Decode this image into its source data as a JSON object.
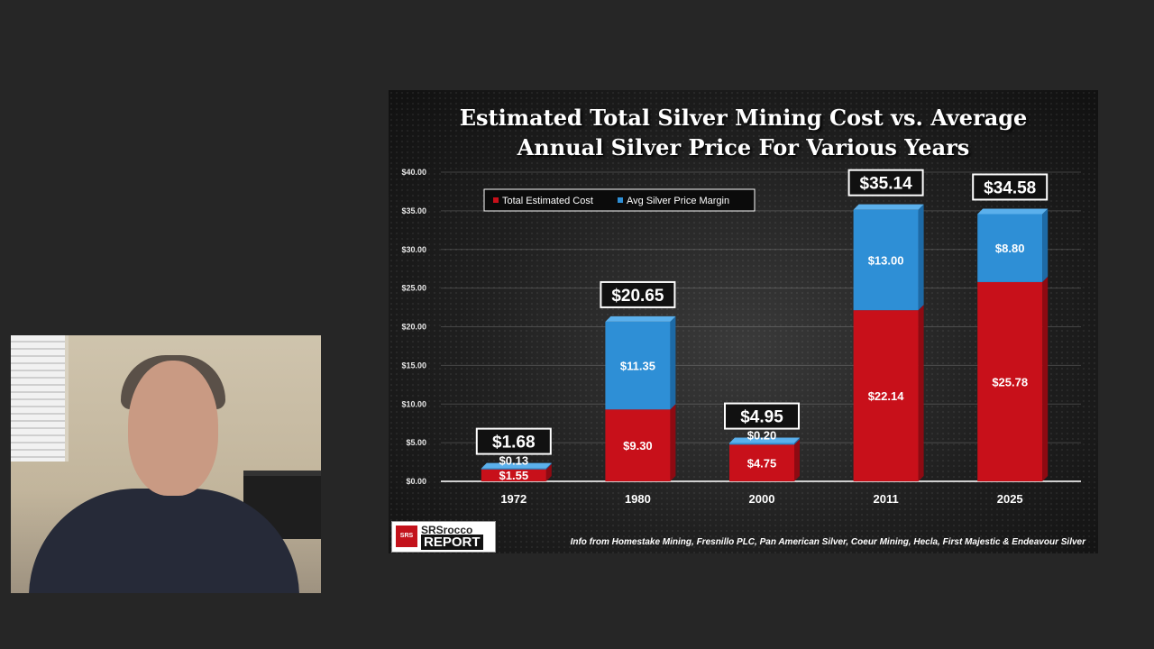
{
  "chart_data": {
    "type": "bar",
    "stacked": true,
    "title_lines": [
      "Estimated Total Silver Mining Cost vs. Average",
      "Annual Silver Price For Various Years"
    ],
    "categories": [
      "1972",
      "1980",
      "2000",
      "2011",
      "2025"
    ],
    "series": [
      {
        "name": "Total Estimated Cost",
        "color": "#c8101a",
        "values": [
          1.55,
          9.3,
          4.75,
          22.14,
          25.78
        ],
        "labels": [
          "$1.55",
          "$9.30",
          "$4.75",
          "$22.14",
          "$25.78"
        ]
      },
      {
        "name": "Avg Silver Price Margin",
        "color": "#2e8fd6",
        "values": [
          0.13,
          11.35,
          0.2,
          13.0,
          8.8
        ],
        "labels": [
          "$0.13",
          "$11.35",
          "$0.20",
          "$13.00",
          "$8.80"
        ]
      }
    ],
    "totals": [
      "$1.68",
      "$20.65",
      "$4.95",
      "$35.14",
      "$34.58"
    ],
    "ylim": [
      0,
      40
    ],
    "yticks": [
      0,
      5,
      10,
      15,
      20,
      25,
      30,
      35,
      40
    ],
    "ytick_labels": [
      "$0.00",
      "$5.00",
      "$10.00",
      "$15.00",
      "$20.00",
      "$25.00",
      "$30.00",
      "$35.00",
      "$40.00"
    ],
    "grid": true,
    "legend_position": "top-left"
  },
  "branding": {
    "logo_line1": "SRSrocco",
    "logo_line2": "REPORT"
  },
  "source_note": "Info from Homestake Mining, Fresnillo PLC, Pan American Silver, Coeur Mining, Hecla, First Majestic & Endeavour Silver"
}
